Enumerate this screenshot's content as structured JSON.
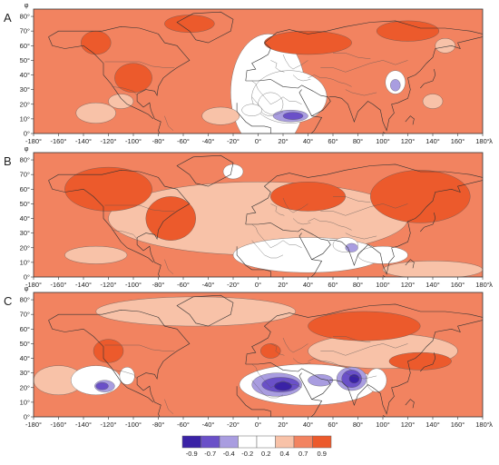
{
  "panels": [
    {
      "label": "A",
      "blobs": [
        {
          "cx": 8,
          "cy": 28,
          "rx": 30,
          "ry": 40,
          "level": "white"
        },
        {
          "cx": 140,
          "cy": 22,
          "rx": 8,
          "ry": 5,
          "level": "light"
        },
        {
          "cx": 150,
          "cy": 60,
          "rx": 8,
          "ry": 5,
          "level": "light"
        },
        {
          "cx": -130,
          "cy": 14,
          "rx": 16,
          "ry": 7,
          "level": "light"
        },
        {
          "cx": -110,
          "cy": 22,
          "rx": 10,
          "ry": 5,
          "level": "light"
        },
        {
          "cx": -30,
          "cy": 12,
          "rx": 15,
          "ry": 6,
          "level": "light"
        },
        {
          "cx": -130,
          "cy": 62,
          "rx": 12,
          "ry": 8,
          "level": "dark"
        },
        {
          "cx": -55,
          "cy": 75,
          "rx": 20,
          "ry": 6,
          "level": "dark"
        },
        {
          "cx": 40,
          "cy": 62,
          "rx": 35,
          "ry": 8,
          "level": "dark"
        },
        {
          "cx": 120,
          "cy": 70,
          "rx": 25,
          "ry": 7,
          "level": "dark"
        },
        {
          "cx": -100,
          "cy": 38,
          "rx": 15,
          "ry": 10,
          "level": "dark"
        },
        {
          "cx": 25,
          "cy": 25,
          "rx": 30,
          "ry": 18,
          "level": "white"
        },
        {
          "cx": 10,
          "cy": 20,
          "rx": 10,
          "ry": 8,
          "level": "white"
        },
        {
          "cx": 26,
          "cy": 12,
          "rx": 14,
          "ry": 4,
          "level": "pale-blue"
        },
        {
          "cx": 28,
          "cy": 12,
          "rx": 8,
          "ry": 2.5,
          "level": "blue"
        },
        {
          "cx": 110,
          "cy": 35,
          "rx": 8,
          "ry": 8,
          "level": "white"
        },
        {
          "cx": 110,
          "cy": 33,
          "rx": 4,
          "ry": 4,
          "level": "pale-blue"
        },
        {
          "cx": -5,
          "cy": 16,
          "rx": 8,
          "ry": 4,
          "level": "white"
        }
      ]
    },
    {
      "label": "B",
      "blobs": [
        {
          "cx": 0,
          "cy": 40,
          "rx": 120,
          "ry": 25,
          "level": "light"
        },
        {
          "cx": 40,
          "cy": 15,
          "rx": 60,
          "ry": 12,
          "level": "white"
        },
        {
          "cx": 70,
          "cy": 22,
          "rx": 10,
          "ry": 5,
          "level": "white"
        },
        {
          "cx": 75,
          "cy": 20,
          "rx": 5,
          "ry": 3,
          "level": "pale-blue"
        },
        {
          "cx": 100,
          "cy": 15,
          "rx": 20,
          "ry": 6,
          "level": "white"
        },
        {
          "cx": -20,
          "cy": 72,
          "rx": 8,
          "ry": 5,
          "level": "white"
        },
        {
          "cx": -130,
          "cy": 15,
          "rx": 25,
          "ry": 6,
          "level": "light"
        },
        {
          "cx": 140,
          "cy": 5,
          "rx": 40,
          "ry": 6,
          "level": "light"
        },
        {
          "cx": -120,
          "cy": 60,
          "rx": 35,
          "ry": 15,
          "level": "dark"
        },
        {
          "cx": 130,
          "cy": 55,
          "rx": 40,
          "ry": 18,
          "level": "dark"
        },
        {
          "cx": -70,
          "cy": 40,
          "rx": 20,
          "ry": 15,
          "level": "dark"
        },
        {
          "cx": 40,
          "cy": 55,
          "rx": 30,
          "ry": 10,
          "level": "dark"
        }
      ]
    },
    {
      "label": "C",
      "blobs": [
        {
          "cx": -50,
          "cy": 72,
          "rx": 80,
          "ry": 10,
          "level": "light"
        },
        {
          "cx": 100,
          "cy": 45,
          "rx": 60,
          "ry": 12,
          "level": "light"
        },
        {
          "cx": -160,
          "cy": 25,
          "rx": 20,
          "ry": 10,
          "level": "light"
        },
        {
          "cx": -130,
          "cy": 25,
          "rx": 20,
          "ry": 10,
          "level": "white"
        },
        {
          "cx": -123,
          "cy": 21,
          "rx": 8,
          "ry": 4,
          "level": "pale-blue"
        },
        {
          "cx": -125,
          "cy": 21,
          "rx": 5,
          "ry": 2.5,
          "level": "blue"
        },
        {
          "cx": -105,
          "cy": 28,
          "rx": 6,
          "ry": 6,
          "level": "white"
        },
        {
          "cx": 40,
          "cy": 22,
          "rx": 55,
          "ry": 14,
          "level": "white"
        },
        {
          "cx": 15,
          "cy": 22,
          "rx": 20,
          "ry": 8,
          "level": "pale-blue"
        },
        {
          "cx": 18,
          "cy": 22,
          "rx": 15,
          "ry": 5,
          "level": "blue"
        },
        {
          "cx": 20,
          "cy": 21,
          "rx": 7,
          "ry": 3,
          "level": "dark-blue"
        },
        {
          "cx": 50,
          "cy": 25,
          "rx": 10,
          "ry": 4,
          "level": "pale-blue"
        },
        {
          "cx": 75,
          "cy": 26,
          "rx": 12,
          "ry": 8,
          "level": "pale-blue"
        },
        {
          "cx": 75,
          "cy": 26,
          "rx": 8,
          "ry": 6,
          "level": "blue"
        },
        {
          "cx": 77,
          "cy": 26,
          "rx": 4,
          "ry": 3,
          "level": "dark-blue"
        },
        {
          "cx": 95,
          "cy": 25,
          "rx": 8,
          "ry": 8,
          "level": "white"
        },
        {
          "cx": 85,
          "cy": 62,
          "rx": 45,
          "ry": 10,
          "level": "dark"
        },
        {
          "cx": 130,
          "cy": 38,
          "rx": 25,
          "ry": 6,
          "level": "dark"
        },
        {
          "cx": -120,
          "cy": 45,
          "rx": 12,
          "ry": 8,
          "level": "dark"
        },
        {
          "cx": 10,
          "cy": 45,
          "rx": 8,
          "ry": 5,
          "level": "dark"
        }
      ]
    }
  ],
  "axis": {
    "x_ticks": [
      "-180°",
      "-160°",
      "-140°",
      "-120°",
      "-100°",
      "-80°",
      "-60°",
      "-40°",
      "-20°",
      "0°",
      "20°",
      "40°",
      "60°",
      "80°",
      "100°",
      "120°",
      "140°",
      "160°",
      "180°"
    ],
    "x_tick_values": [
      -180,
      -160,
      -140,
      -120,
      -100,
      -80,
      -60,
      -40,
      -20,
      0,
      20,
      40,
      60,
      80,
      100,
      120,
      140,
      160,
      180
    ],
    "x_symbol": "λ",
    "y_ticks": [
      "0°",
      "10°",
      "20°",
      "30°",
      "40°",
      "50°",
      "60°",
      "70°",
      "80°"
    ],
    "y_tick_values": [
      0,
      10,
      20,
      30,
      40,
      50,
      60,
      70,
      80
    ],
    "y_symbol": "φ",
    "lon_range": [
      -180,
      180
    ],
    "lat_range": [
      0,
      85
    ]
  },
  "legend": {
    "labels": [
      "-0.9",
      "-0.7",
      "-0.4",
      "-0.2",
      "0.2",
      "0.4",
      "0.7",
      "0.9"
    ],
    "colors": [
      "#3a22a6",
      "#6a50c8",
      "#a99de0",
      "#ffffff",
      "#ffffff",
      "#f8c2a8",
      "#f28360",
      "#ec5a2c"
    ]
  },
  "colors": {
    "base": "#f28360",
    "dark": "#ec5a2c",
    "light": "#f8c2a8",
    "white": "#ffffff",
    "pale-blue": "#a99de0",
    "blue": "#6a50c8",
    "dark-blue": "#3a22a6",
    "coast": "#333333"
  }
}
